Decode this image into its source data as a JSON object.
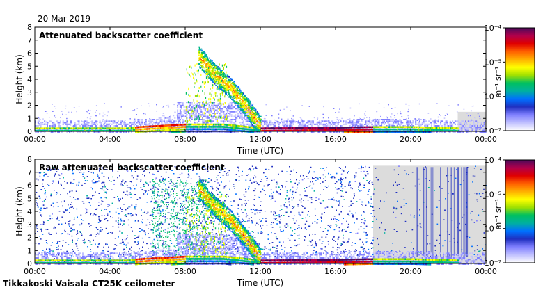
{
  "header": {
    "date": "20 Mar 2019"
  },
  "footer": {
    "site": "Tikkakoski Vaisala CT25K ceilometer"
  },
  "colorbar": {
    "unit": "m⁻¹ sr⁻¹",
    "ticks": [
      "10⁻⁴",
      "10⁻⁵",
      "10⁻⁶",
      "10⁻⁷"
    ],
    "colors": [
      "#4b0a5a",
      "#b0004c",
      "#e00000",
      "#ff6000",
      "#ffb000",
      "#ffff00",
      "#a0e000",
      "#00c060",
      "#00b0a0",
      "#0070ff",
      "#2030c0",
      "#8080ff",
      "#c0c0ff",
      "#ffffff"
    ]
  },
  "chart_data": [
    {
      "type": "heatmap",
      "title": "Attenuated backscatter coefficient",
      "xlabel": "Time (UTC)",
      "ylabel": "Height (km)",
      "xticks": [
        "00:00",
        "04:00",
        "08:00",
        "12:00",
        "16:00",
        "20:00",
        "00:00"
      ],
      "yticks": [
        "0",
        "1",
        "2",
        "3",
        "4",
        "5",
        "6",
        "7",
        "8"
      ],
      "xlim": [
        0,
        24
      ],
      "ylim": [
        0,
        8
      ],
      "log_scale_colorbar": true,
      "noise_level": "low",
      "features": [
        {
          "name": "boundary layer",
          "t": [
            0,
            5,
            5.5,
            8,
            10,
            12,
            16,
            18,
            20,
            22.5
          ],
          "h": [
            0.3,
            0.3,
            0.4,
            0.6,
            0.6,
            0.3,
            0.35,
            0.4,
            0.4,
            0.3
          ]
        },
        {
          "name": "precipitation band",
          "t": [
            8.7,
            9.5,
            10.5,
            11.3,
            12.0
          ],
          "h": [
            5.8,
            4.5,
            3.2,
            1.8,
            0.4
          ]
        },
        {
          "name": "no data",
          "t_start": 22.5,
          "t_end": 24,
          "h_top": 1.5
        }
      ]
    },
    {
      "type": "heatmap",
      "title": "Raw attenuated backscatter coefficient",
      "xlabel": "Time (UTC)",
      "ylabel": "Height (km)",
      "xticks": [
        "00:00",
        "04:00",
        "08:00",
        "12:00",
        "16:00",
        "20:00",
        "00:00"
      ],
      "yticks": [
        "0",
        "1",
        "2",
        "3",
        "4",
        "5",
        "6",
        "7",
        "8"
      ],
      "xlim": [
        0,
        24
      ],
      "ylim": [
        0,
        8
      ],
      "log_scale_colorbar": true,
      "noise_level": "high",
      "features": [
        {
          "name": "boundary layer",
          "t": [
            0,
            5,
            5.5,
            8,
            10,
            12,
            16,
            18,
            20,
            22.5
          ],
          "h": [
            0.3,
            0.3,
            0.4,
            0.6,
            0.6,
            0.3,
            0.35,
            0.4,
            0.4,
            0.3
          ]
        },
        {
          "name": "precipitation band",
          "t": [
            8.7,
            9.5,
            10.5,
            11.3,
            12.0
          ],
          "h": [
            5.8,
            4.5,
            3.2,
            1.8,
            0.4
          ]
        },
        {
          "name": "no data",
          "t_start": 18,
          "t_end": 24,
          "h_top": 7.5
        }
      ]
    }
  ]
}
